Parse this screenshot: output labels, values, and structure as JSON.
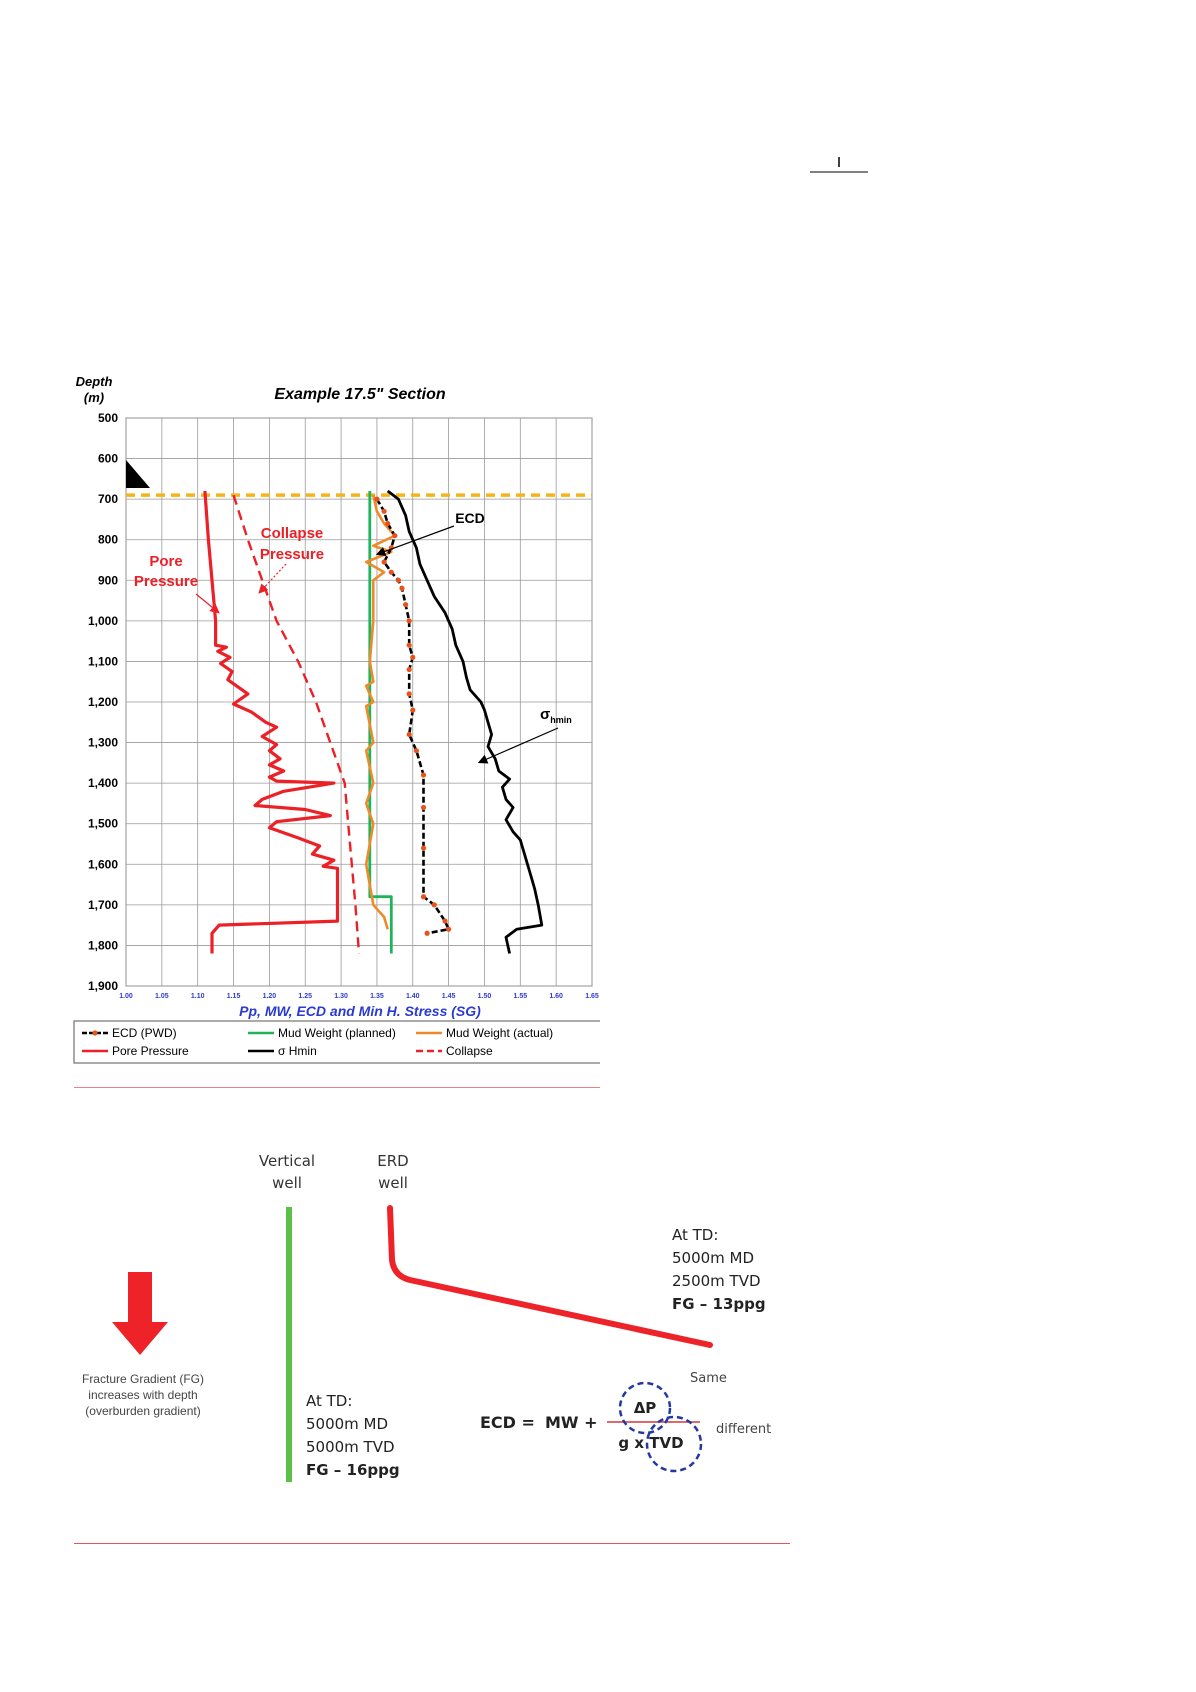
{
  "chart_data": {
    "type": "line",
    "title": "Example 17.5\" Section",
    "ylabel": [
      "Depth",
      "(m)"
    ],
    "xlabel": "Pp, MW, ECD and Min H. Stress (SG)",
    "xlim": [
      1.0,
      1.65
    ],
    "ylim": [
      500,
      1900
    ],
    "xticks": [
      "1.00",
      "1.05",
      "1.10",
      "1.15",
      "1.20",
      "1.25",
      "1.30",
      "1.35",
      "1.40",
      "1.45",
      "1.50",
      "1.55",
      "1.60",
      "1.65"
    ],
    "yticks": [
      "500",
      "600",
      "700",
      "800",
      "900",
      "1,000",
      "1,100",
      "1,200",
      "1,300",
      "1,400",
      "1,500",
      "1,600",
      "1,700",
      "1,800",
      "1,900"
    ],
    "grid": true,
    "legend_position": "bottom",
    "casing_shoe_depth": 690,
    "colors": {
      "ecd": "#000000",
      "ecd_markers": "#e8531c",
      "mw_planned": "#21b35b",
      "mw_actual": "#ef8a2a",
      "pore": "#ec2027",
      "hmin": "#000000",
      "collapse": "#ec2027",
      "casing_line": "#f5b518",
      "axis_ticks": "#2b3bd1"
    },
    "legend": [
      {
        "key": "ecd",
        "label": "ECD (PWD)"
      },
      {
        "key": "mw_planned",
        "label": "Mud Weight (planned)"
      },
      {
        "key": "mw_actual",
        "label": "Mud Weight (actual)"
      },
      {
        "key": "pore",
        "label": "Pore Pressure"
      },
      {
        "key": "hmin",
        "label": "σ Hmin"
      },
      {
        "key": "collapse",
        "label": "Collapse"
      }
    ],
    "annotations": {
      "pore": [
        "Pore",
        "Pressure"
      ],
      "collapse": [
        "Collapse",
        "Pressure"
      ],
      "ecd": "ECD",
      "hmin": "σ",
      "hmin_sub": "hmin"
    },
    "series": [
      {
        "key": "pore",
        "name": "Pore Pressure",
        "points": [
          [
            1.11,
            680
          ],
          [
            1.115,
            800
          ],
          [
            1.12,
            900
          ],
          [
            1.125,
            1000
          ],
          [
            1.125,
            1060
          ],
          [
            1.14,
            1065
          ],
          [
            1.128,
            1075
          ],
          [
            1.145,
            1090
          ],
          [
            1.132,
            1105
          ],
          [
            1.148,
            1125
          ],
          [
            1.142,
            1145
          ],
          [
            1.17,
            1180
          ],
          [
            1.15,
            1205
          ],
          [
            1.175,
            1225
          ],
          [
            1.195,
            1250
          ],
          [
            1.21,
            1262
          ],
          [
            1.19,
            1285
          ],
          [
            1.21,
            1305
          ],
          [
            1.2,
            1320
          ],
          [
            1.215,
            1340
          ],
          [
            1.2,
            1355
          ],
          [
            1.22,
            1370
          ],
          [
            1.2,
            1385
          ],
          [
            1.21,
            1395
          ],
          [
            1.29,
            1400
          ],
          [
            1.22,
            1420
          ],
          [
            1.19,
            1440
          ],
          [
            1.18,
            1455
          ],
          [
            1.25,
            1465
          ],
          [
            1.285,
            1480
          ],
          [
            1.21,
            1495
          ],
          [
            1.2,
            1510
          ],
          [
            1.24,
            1535
          ],
          [
            1.27,
            1555
          ],
          [
            1.26,
            1575
          ],
          [
            1.29,
            1590
          ],
          [
            1.275,
            1605
          ],
          [
            1.295,
            1610
          ],
          [
            1.295,
            1740
          ],
          [
            1.13,
            1750
          ],
          [
            1.12,
            1770
          ],
          [
            1.12,
            1820
          ]
        ]
      },
      {
        "key": "collapse",
        "name": "Collapse",
        "points": [
          [
            1.15,
            690
          ],
          [
            1.17,
            800
          ],
          [
            1.19,
            900
          ],
          [
            1.21,
            1000
          ],
          [
            1.24,
            1100
          ],
          [
            1.265,
            1200
          ],
          [
            1.285,
            1300
          ],
          [
            1.305,
            1400
          ],
          [
            1.31,
            1500
          ],
          [
            1.315,
            1600
          ],
          [
            1.32,
            1700
          ],
          [
            1.325,
            1820
          ]
        ]
      },
      {
        "key": "mw_planned",
        "name": "Mud Weight (planned)",
        "points": [
          [
            1.34,
            680
          ],
          [
            1.34,
            1680
          ],
          [
            1.37,
            1680
          ],
          [
            1.37,
            1820
          ]
        ]
      },
      {
        "key": "mw_actual",
        "name": "Mud Weight (actual)",
        "points": [
          [
            1.345,
            690
          ],
          [
            1.35,
            730
          ],
          [
            1.36,
            760
          ],
          [
            1.375,
            790
          ],
          [
            1.345,
            815
          ],
          [
            1.37,
            830
          ],
          [
            1.335,
            855
          ],
          [
            1.36,
            880
          ],
          [
            1.345,
            900
          ],
          [
            1.345,
            1000
          ],
          [
            1.34,
            1100
          ],
          [
            1.345,
            1150
          ],
          [
            1.335,
            1160
          ],
          [
            1.345,
            1200
          ],
          [
            1.335,
            1210
          ],
          [
            1.345,
            1300
          ],
          [
            1.335,
            1320
          ],
          [
            1.345,
            1400
          ],
          [
            1.335,
            1450
          ],
          [
            1.345,
            1500
          ],
          [
            1.335,
            1600
          ],
          [
            1.345,
            1700
          ],
          [
            1.36,
            1730
          ],
          [
            1.365,
            1760
          ]
        ]
      },
      {
        "key": "ecd",
        "name": "ECD (PWD)",
        "points": [
          [
            1.35,
            700
          ],
          [
            1.36,
            730
          ],
          [
            1.365,
            760
          ],
          [
            1.375,
            790
          ],
          [
            1.37,
            820
          ],
          [
            1.36,
            855
          ],
          [
            1.37,
            880
          ],
          [
            1.38,
            900
          ],
          [
            1.385,
            920
          ],
          [
            1.39,
            960
          ],
          [
            1.395,
            1000
          ],
          [
            1.395,
            1060
          ],
          [
            1.4,
            1090
          ],
          [
            1.395,
            1120
          ],
          [
            1.395,
            1180
          ],
          [
            1.4,
            1220
          ],
          [
            1.395,
            1280
          ],
          [
            1.405,
            1320
          ],
          [
            1.415,
            1380
          ],
          [
            1.415,
            1460
          ],
          [
            1.415,
            1560
          ],
          [
            1.415,
            1680
          ],
          [
            1.43,
            1700
          ],
          [
            1.445,
            1740
          ],
          [
            1.45,
            1760
          ],
          [
            1.42,
            1770
          ]
        ]
      },
      {
        "key": "hmin",
        "name": "σ Hmin",
        "points": [
          [
            1.365,
            680
          ],
          [
            1.38,
            700
          ],
          [
            1.39,
            740
          ],
          [
            1.395,
            780
          ],
          [
            1.405,
            820
          ],
          [
            1.41,
            860
          ],
          [
            1.42,
            900
          ],
          [
            1.43,
            940
          ],
          [
            1.445,
            980
          ],
          [
            1.455,
            1020
          ],
          [
            1.46,
            1060
          ],
          [
            1.47,
            1100
          ],
          [
            1.475,
            1140
          ],
          [
            1.48,
            1170
          ],
          [
            1.495,
            1200
          ],
          [
            1.5,
            1220
          ],
          [
            1.505,
            1250
          ],
          [
            1.51,
            1280
          ],
          [
            1.505,
            1310
          ],
          [
            1.515,
            1340
          ],
          [
            1.52,
            1370
          ],
          [
            1.535,
            1390
          ],
          [
            1.525,
            1410
          ],
          [
            1.53,
            1440
          ],
          [
            1.54,
            1460
          ],
          [
            1.53,
            1490
          ],
          [
            1.54,
            1520
          ],
          [
            1.55,
            1540
          ],
          [
            1.555,
            1570
          ],
          [
            1.56,
            1600
          ],
          [
            1.565,
            1630
          ],
          [
            1.57,
            1660
          ],
          [
            1.575,
            1700
          ],
          [
            1.58,
            1750
          ],
          [
            1.545,
            1760
          ],
          [
            1.53,
            1780
          ],
          [
            1.535,
            1820
          ]
        ]
      }
    ]
  },
  "diagram": {
    "vertical_well": {
      "label": [
        "Vertical",
        "well"
      ],
      "td_text": [
        "At TD:",
        "5000m MD",
        "5000m TVD"
      ],
      "fg": "FG – 16ppg"
    },
    "erd_well": {
      "label": [
        "ERD",
        "well"
      ],
      "td_text": [
        "At TD:",
        "5000m MD",
        "2500m TVD"
      ],
      "fg": "FG – 13ppg"
    },
    "arrow_caption": [
      "Fracture Gradient (FG)",
      "increases with depth",
      "(overburden gradient)"
    ],
    "equation": {
      "lhs": "ECD =",
      "mw": "MW +",
      "numerator": "ΔP",
      "denominator": "g x TVD",
      "same_label": "Same",
      "different_label": "different"
    },
    "colors": {
      "vertical": "#5cbf46",
      "erd": "#ee2229",
      "arrow": "#ee2229",
      "circle": "#2339a0",
      "fraction_line": "#d43a3a"
    }
  }
}
